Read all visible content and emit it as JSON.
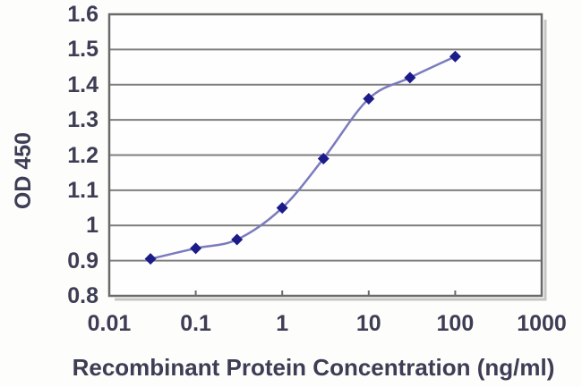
{
  "figure": {
    "background": "#fdfdfb"
  },
  "chart_data": {
    "type": "line",
    "title": "",
    "xlabel": "Recombinant Protein Concentration (ng/ml)",
    "ylabel": "OD 450",
    "x_scale": "log",
    "xlim": [
      0.01,
      1000
    ],
    "ylim": [
      0.8,
      1.6
    ],
    "x_ticks": [
      0.01,
      0.1,
      1,
      10,
      100,
      1000
    ],
    "x_tick_labels": [
      "0.01",
      "0.1",
      "1",
      "10",
      "100",
      "1000"
    ],
    "y_ticks": [
      0.8,
      0.9,
      1.0,
      1.1,
      1.2,
      1.3,
      1.4,
      1.5,
      1.6
    ],
    "y_tick_labels": [
      "0.8",
      "0.9",
      "1",
      "1.1",
      "1.2",
      "1.3",
      "1.4",
      "1.5",
      "1.6"
    ],
    "grid": "horizontal",
    "legend": "none",
    "series": [
      {
        "name": "OD 450",
        "x": [
          0.03,
          0.1,
          0.3,
          1,
          3,
          10,
          30,
          100
        ],
        "y": [
          0.905,
          0.935,
          0.96,
          1.05,
          1.19,
          1.36,
          1.42,
          1.48
        ],
        "line_color": "#7b7bbe",
        "marker": "diamond",
        "marker_color": "#1b1b8a"
      }
    ],
    "colors": {
      "plot_background": "#fefefe",
      "grid": "#7e7e7e",
      "frame": "#6a6a6a",
      "shadow": "#c6c6c6",
      "text": "#3d3d55"
    }
  }
}
